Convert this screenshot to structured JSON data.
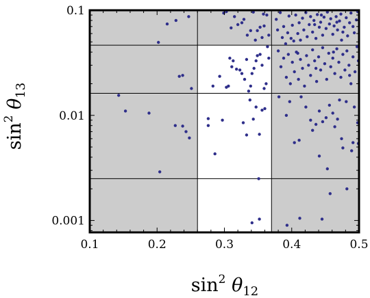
{
  "chart_data": {
    "type": "scatter",
    "title": "",
    "xlabel": {
      "base": "sin",
      "sup": "2",
      "greek": "θ",
      "sub": "12"
    },
    "ylabel": {
      "base": "sin",
      "sup": "2",
      "greek": "θ",
      "sub": "13"
    },
    "xlim": [
      0.1,
      0.5
    ],
    "ylim": [
      0.00077,
      0.1
    ],
    "yscale": "log",
    "xticks": [
      {
        "value": 0.1,
        "label": "0.1"
      },
      {
        "value": 0.2,
        "label": "0.2"
      },
      {
        "value": 0.3,
        "label": "0.3"
      },
      {
        "value": 0.4,
        "label": "0.4"
      },
      {
        "value": 0.5,
        "label": "0.5"
      }
    ],
    "yticks": [
      {
        "value": 0.1,
        "label": "0.1"
      },
      {
        "value": 0.01,
        "label": "0.01"
      },
      {
        "value": 0.001,
        "label": "0.001"
      }
    ],
    "allowed_region": {
      "x": [
        0.26,
        0.37
      ],
      "y": [
        0.00077,
        0.0465
      ]
    },
    "grid_x": [
      0.26,
      0.37
    ],
    "grid_y": [
      0.0465,
      0.0162,
      0.0025
    ],
    "colors": {
      "shade": "#cccccc",
      "point": "#2e2e8a",
      "frame": "#000000"
    },
    "points": [
      [
        0.202,
        0.0495
      ],
      [
        0.215,
        0.074
      ],
      [
        0.228,
        0.08
      ],
      [
        0.233,
        0.0235
      ],
      [
        0.238,
        0.024
      ],
      [
        0.247,
        0.087
      ],
      [
        0.251,
        0.018
      ],
      [
        0.143,
        0.0155
      ],
      [
        0.153,
        0.011
      ],
      [
        0.188,
        0.0105
      ],
      [
        0.227,
        0.008
      ],
      [
        0.238,
        0.0079
      ],
      [
        0.243,
        0.007
      ],
      [
        0.248,
        0.0061
      ],
      [
        0.204,
        0.0029
      ],
      [
        0.276,
        0.0093
      ],
      [
        0.276,
        0.008
      ],
      [
        0.283,
        0.019
      ],
      [
        0.286,
        0.0043
      ],
      [
        0.293,
        0.0235
      ],
      [
        0.297,
        0.009
      ],
      [
        0.303,
        0.0185
      ],
      [
        0.306,
        0.019
      ],
      [
        0.308,
        0.035
      ],
      [
        0.311,
        0.029
      ],
      [
        0.313,
        0.033
      ],
      [
        0.318,
        0.0275
      ],
      [
        0.323,
        0.027
      ],
      [
        0.326,
        0.025
      ],
      [
        0.33,
        0.022
      ],
      [
        0.333,
        0.034
      ],
      [
        0.336,
        0.017
      ],
      [
        0.339,
        0.019
      ],
      [
        0.341,
        0.025
      ],
      [
        0.344,
        0.028
      ],
      [
        0.347,
        0.033
      ],
      [
        0.349,
        0.037
      ],
      [
        0.353,
        0.038
      ],
      [
        0.356,
        0.03
      ],
      [
        0.359,
        0.018
      ],
      [
        0.362,
        0.02
      ],
      [
        0.366,
        0.035
      ],
      [
        0.328,
        0.0085
      ],
      [
        0.333,
        0.0065
      ],
      [
        0.338,
        0.014
      ],
      [
        0.343,
        0.0092
      ],
      [
        0.347,
        0.012
      ],
      [
        0.352,
        0.0066
      ],
      [
        0.356,
        0.0112
      ],
      [
        0.36,
        0.0116
      ],
      [
        0.341,
        0.00095
      ],
      [
        0.352,
        0.00103
      ],
      [
        0.351,
        0.0025
      ],
      [
        0.364,
        0.045
      ],
      [
        0.299,
        0.094
      ],
      [
        0.303,
        0.097
      ],
      [
        0.31,
        0.068
      ],
      [
        0.315,
        0.087
      ],
      [
        0.32,
        0.073
      ],
      [
        0.326,
        0.076
      ],
      [
        0.329,
        0.082
      ],
      [
        0.334,
        0.058
      ],
      [
        0.339,
        0.064
      ],
      [
        0.343,
        0.096
      ],
      [
        0.349,
        0.064
      ],
      [
        0.353,
        0.069
      ],
      [
        0.356,
        0.055
      ],
      [
        0.359,
        0.071
      ],
      [
        0.363,
        0.09
      ],
      [
        0.366,
        0.058
      ],
      [
        0.358,
        0.092
      ],
      [
        0.346,
        0.052
      ],
      [
        0.377,
        0.082
      ],
      [
        0.379,
        0.065
      ],
      [
        0.383,
        0.095
      ],
      [
        0.386,
        0.055
      ],
      [
        0.388,
        0.07
      ],
      [
        0.391,
        0.048
      ],
      [
        0.394,
        0.061
      ],
      [
        0.396,
        0.088
      ],
      [
        0.399,
        0.054
      ],
      [
        0.401,
        0.072
      ],
      [
        0.403,
        0.051
      ],
      [
        0.406,
        0.09
      ],
      [
        0.409,
        0.06
      ],
      [
        0.411,
        0.076
      ],
      [
        0.413,
        0.052
      ],
      [
        0.416,
        0.084
      ],
      [
        0.418,
        0.065
      ],
      [
        0.421,
        0.095
      ],
      [
        0.423,
        0.056
      ],
      [
        0.426,
        0.073
      ],
      [
        0.428,
        0.087
      ],
      [
        0.431,
        0.062
      ],
      [
        0.433,
        0.08
      ],
      [
        0.436,
        0.054
      ],
      [
        0.438,
        0.091
      ],
      [
        0.441,
        0.069
      ],
      [
        0.443,
        0.077
      ],
      [
        0.446,
        0.058
      ],
      [
        0.448,
        0.086
      ],
      [
        0.451,
        0.067
      ],
      [
        0.453,
        0.096
      ],
      [
        0.456,
        0.074
      ],
      [
        0.458,
        0.083
      ],
      [
        0.461,
        0.059
      ],
      [
        0.463,
        0.071
      ],
      [
        0.466,
        0.087
      ],
      [
        0.468,
        0.065
      ],
      [
        0.471,
        0.079
      ],
      [
        0.473,
        0.092
      ],
      [
        0.476,
        0.062
      ],
      [
        0.478,
        0.069
      ],
      [
        0.481,
        0.085
      ],
      [
        0.483,
        0.057
      ],
      [
        0.486,
        0.076
      ],
      [
        0.488,
        0.094
      ],
      [
        0.491,
        0.07
      ],
      [
        0.493,
        0.061
      ],
      [
        0.496,
        0.081
      ],
      [
        0.498,
        0.097
      ],
      [
        0.434,
        0.073
      ],
      [
        0.467,
        0.077
      ],
      [
        0.444,
        0.09
      ],
      [
        0.474,
        0.052
      ],
      [
        0.38,
        0.041
      ],
      [
        0.384,
        0.029
      ],
      [
        0.388,
        0.035
      ],
      [
        0.392,
        0.023
      ],
      [
        0.395,
        0.038
      ],
      [
        0.398,
        0.02
      ],
      [
        0.401,
        0.032
      ],
      [
        0.404,
        0.026
      ],
      [
        0.407,
        0.04
      ],
      [
        0.41,
        0.022
      ],
      [
        0.413,
        0.034
      ],
      [
        0.416,
        0.028
      ],
      [
        0.419,
        0.019
      ],
      [
        0.422,
        0.037
      ],
      [
        0.425,
        0.03
      ],
      [
        0.428,
        0.024
      ],
      [
        0.431,
        0.042
      ],
      [
        0.434,
        0.033
      ],
      [
        0.437,
        0.021
      ],
      [
        0.44,
        0.036
      ],
      [
        0.443,
        0.027
      ],
      [
        0.446,
        0.044
      ],
      [
        0.449,
        0.031
      ],
      [
        0.452,
        0.022
      ],
      [
        0.455,
        0.039
      ],
      [
        0.458,
        0.029
      ],
      [
        0.461,
        0.035
      ],
      [
        0.464,
        0.025
      ],
      [
        0.467,
        0.043
      ],
      [
        0.47,
        0.032
      ],
      [
        0.473,
        0.023
      ],
      [
        0.476,
        0.038
      ],
      [
        0.479,
        0.027
      ],
      [
        0.482,
        0.041
      ],
      [
        0.485,
        0.03
      ],
      [
        0.488,
        0.02
      ],
      [
        0.491,
        0.036
      ],
      [
        0.494,
        0.026
      ],
      [
        0.497,
        0.045
      ],
      [
        0.499,
        0.033
      ],
      [
        0.409,
        0.039
      ],
      [
        0.436,
        0.028
      ],
      [
        0.462,
        0.04
      ],
      [
        0.486,
        0.024
      ],
      [
        0.381,
        0.015
      ],
      [
        0.392,
        0.01
      ],
      [
        0.397,
        0.0135
      ],
      [
        0.404,
        0.0055
      ],
      [
        0.411,
        0.0058
      ],
      [
        0.414,
        0.015
      ],
      [
        0.421,
        0.012
      ],
      [
        0.428,
        0.009
      ],
      [
        0.431,
        0.0072
      ],
      [
        0.436,
        0.0082
      ],
      [
        0.441,
        0.011
      ],
      [
        0.446,
        0.0087
      ],
      [
        0.451,
        0.0095
      ],
      [
        0.456,
        0.0125
      ],
      [
        0.461,
        0.0105
      ],
      [
        0.464,
        0.0078
      ],
      [
        0.468,
        0.0092
      ],
      [
        0.471,
        0.014
      ],
      [
        0.474,
        0.006
      ],
      [
        0.481,
        0.0135
      ],
      [
        0.489,
        0.0046
      ],
      [
        0.493,
        0.012
      ],
      [
        0.498,
        0.0085
      ],
      [
        0.499,
        0.0054
      ],
      [
        0.441,
        0.0041
      ],
      [
        0.453,
        0.0031
      ],
      [
        0.457,
        0.0018
      ],
      [
        0.476,
        0.0049
      ],
      [
        0.482,
        0.002
      ],
      [
        0.491,
        0.0055
      ],
      [
        0.412,
        0.00105
      ],
      [
        0.445,
        0.00103
      ],
      [
        0.393,
        0.0009
      ]
    ]
  }
}
